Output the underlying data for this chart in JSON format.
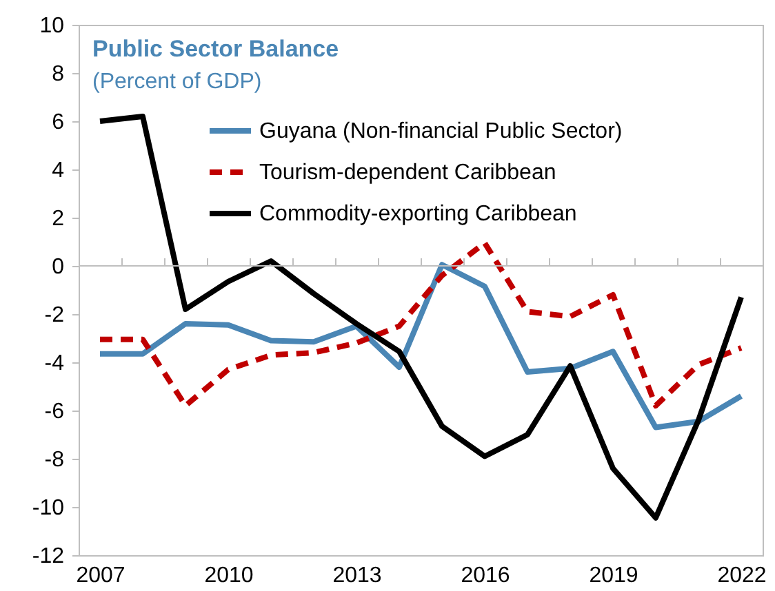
{
  "chart_data": {
    "type": "line",
    "title": "Public Sector Balance",
    "subtitle": "(Percent of GDP)",
    "x": [
      2007,
      2008,
      2009,
      2010,
      2011,
      2012,
      2013,
      2014,
      2015,
      2016,
      2017,
      2018,
      2019,
      2020,
      2021,
      2022
    ],
    "xlim": [
      2006.5,
      2022.5
    ],
    "xticks": [
      2007,
      2010,
      2013,
      2016,
      2019,
      2022
    ],
    "ylim": [
      -12,
      10
    ],
    "yticks": [
      -12,
      -10,
      -8,
      -6,
      -4,
      -2,
      0,
      2,
      4,
      6,
      8,
      10
    ],
    "grid": false,
    "legend": "top right",
    "marker": "none",
    "ref_lines": [
      {
        "axis": "y",
        "value": 0,
        "color": "#bfbfbf"
      }
    ],
    "series": [
      {
        "name": "Guyana (Non-financial Public Sector)",
        "color": "#4a86b5",
        "line_style": "solid",
        "values": [
          -3.65,
          -3.65,
          -2.4,
          -2.45,
          -3.1,
          -3.15,
          -2.5,
          -4.2,
          0.05,
          -0.85,
          -4.4,
          -4.25,
          -3.55,
          -6.7,
          -6.45,
          -5.4
        ]
      },
      {
        "name": "Tourism-dependent Caribbean",
        "color": "#c00000",
        "line_style": "dashed",
        "values": [
          -3.05,
          -3.05,
          -5.8,
          -4.3,
          -3.7,
          -3.6,
          -3.2,
          -2.5,
          -0.4,
          0.95,
          -1.9,
          -2.1,
          -1.2,
          -5.8,
          -4.1,
          -3.4
        ]
      },
      {
        "name": "Commodity-exporting Caribbean",
        "color": "#000000",
        "line_style": "solid",
        "values": [
          6.0,
          6.2,
          -1.8,
          -0.65,
          0.2,
          -1.15,
          -2.4,
          -3.55,
          -6.65,
          -7.9,
          -7.0,
          -4.15,
          -8.4,
          -10.45,
          -6.4,
          -1.3
        ]
      }
    ]
  }
}
